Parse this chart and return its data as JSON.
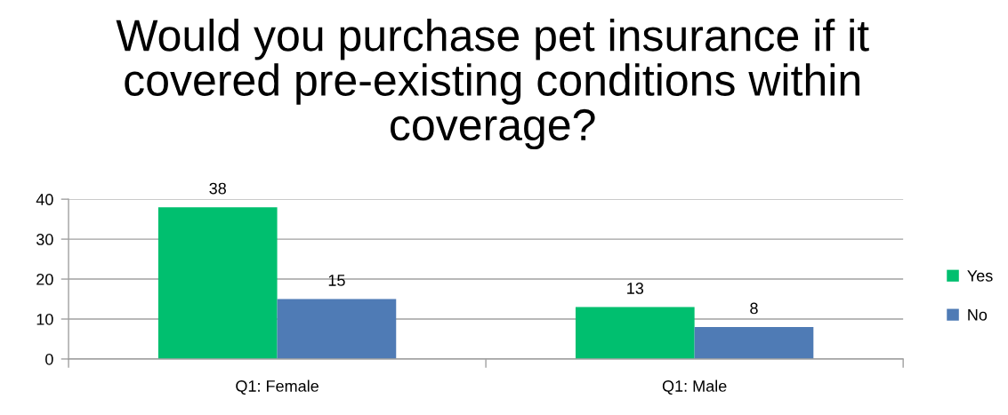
{
  "chart_data": {
    "type": "bar",
    "title": "Would you purchase pet insurance if it covered pre-existing conditions within coverage?",
    "categories": [
      "Q1: Female",
      "Q1: Male"
    ],
    "series": [
      {
        "name": "Yes",
        "color": "#00bf6f",
        "values": [
          38,
          13
        ]
      },
      {
        "name": "No",
        "color": "#4f7bb5",
        "values": [
          15,
          8
        ]
      }
    ],
    "ylim": [
      0,
      40
    ],
    "yticks": [
      0,
      10,
      20,
      30,
      40
    ],
    "grid": "y",
    "legend": "right",
    "data_labels": true
  }
}
